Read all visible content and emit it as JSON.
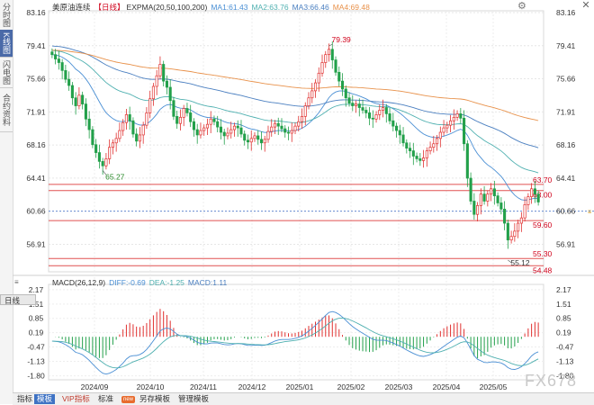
{
  "sidebar": {
    "tabs": [
      {
        "label": "分时图",
        "active": false
      },
      {
        "label": "K线图",
        "active": true
      },
      {
        "label": "闪电图",
        "active": false
      },
      {
        "label": "合约资料",
        "active": false
      }
    ]
  },
  "header": {
    "symbol": "美原油连续",
    "period": "【日线】",
    "indicator": "EXPMA(20,50,100,200)",
    "ma1": "MA1:61.43",
    "ma2": "MA2:63.76",
    "ma3": "MA3:66.46",
    "ma4": "MA4:69.48",
    "colors": {
      "ma1": "#4a8fd4",
      "ma2": "#4fb0b0",
      "ma3": "#4a7fc0",
      "ma4": "#e8914a"
    }
  },
  "macd_header": {
    "name": "MACD(26,12,9)",
    "diff": "DIFF:-0.69",
    "dea": "DEA:-1.25",
    "macd": "MACD:1.11"
  },
  "day_tab": "日线",
  "price_axis": {
    "left": [
      "83.16",
      "79.41",
      "75.66",
      "71.91",
      "68.16",
      "64.41",
      "60.66",
      "56.91"
    ],
    "right": [
      "83.16",
      "79.41",
      "75.66",
      "71.91",
      "68.16",
      "64.41",
      "60.66",
      "56.91"
    ]
  },
  "macd_axis": {
    "left": [
      "2.17",
      "1.51",
      "0.85",
      "0.19",
      "-0.47",
      "-1.13",
      "-1.80"
    ],
    "right": [
      "2.17",
      "1.51",
      "0.85",
      "0.19",
      "-0.47",
      "-1.13",
      "-1.80"
    ]
  },
  "time_axis": [
    "2024/09",
    "2024/10",
    "2024/11",
    "2024/12",
    "2025/01",
    "2025/02",
    "2025/03",
    "2025/04",
    "2025/05"
  ],
  "annotations": {
    "high": "79.39",
    "low1": "65.27",
    "low2": "55.12",
    "level_6370": "63.70",
    "level_6300": "63.00",
    "level_5960": "59.60",
    "level_5530": "55.30",
    "level_5448": "54.48"
  },
  "chart_data": {
    "type": "candlestick",
    "ylim": [
      54.0,
      83.16
    ],
    "key_levels": [
      63.7,
      63.0,
      59.6,
      55.3,
      54.48
    ],
    "current_level": 60.66,
    "extremes": {
      "high": 79.39,
      "low_sep": 65.27,
      "low_apr": 55.12
    },
    "closes": [
      78.4,
      77.9,
      77.5,
      76.6,
      75.6,
      74.9,
      73.5,
      72.6,
      73.8,
      72.8,
      71.1,
      69.9,
      68.2,
      67.3,
      66.3,
      65.8,
      66.6,
      67.9,
      68.4,
      68.9,
      69.8,
      70.7,
      71.6,
      70.9,
      69.4,
      68.6,
      69.3,
      70.4,
      71.8,
      73.4,
      74.8,
      76.0,
      77.3,
      75.4,
      74.7,
      73.2,
      71.4,
      70.6,
      71.3,
      72.3,
      71.8,
      70.8,
      69.9,
      69.3,
      69.8,
      70.1,
      70.5,
      71.1,
      70.8,
      70.2,
      69.6,
      69.2,
      69.5,
      69.9,
      70.3,
      70.1,
      69.4,
      68.7,
      68.5,
      68.9,
      69.2,
      68.8,
      68.4,
      68.8,
      69.7,
      70.2,
      70.6,
      70.3,
      70.0,
      69.6,
      69.5,
      69.8,
      70.3,
      70.8,
      71.4,
      72.6,
      73.5,
      74.3,
      75.2,
      76.3,
      77.5,
      78.4,
      79.0,
      77.8,
      76.4,
      75.4,
      74.5,
      73.5,
      72.9,
      72.6,
      72.8,
      72.4,
      72.1,
      71.8,
      71.2,
      71.1,
      71.6,
      72.1,
      72.4,
      71.7,
      70.9,
      70.3,
      69.8,
      69.3,
      68.4,
      67.8,
      67.5,
      66.9,
      66.6,
      66.4,
      66.7,
      67.5,
      67.9,
      68.3,
      68.9,
      69.6,
      70.1,
      70.4,
      70.9,
      71.3,
      71.7,
      71.2,
      68.3,
      64.4,
      61.8,
      60.3,
      61.3,
      62.6,
      61.8,
      62.6,
      63.2,
      62.4,
      61.6,
      60.9,
      59.3,
      57.4,
      57.8,
      58.4,
      59.3,
      59.9,
      61.4,
      62.3,
      63.2,
      62.6,
      61.7
    ]
  },
  "bottom_bar": {
    "items": [
      "指标",
      "模板",
      "VIP指标",
      "标准",
      "",
      "另存模板",
      "管理模板"
    ],
    "badge": "new"
  },
  "watermark": "FX678"
}
